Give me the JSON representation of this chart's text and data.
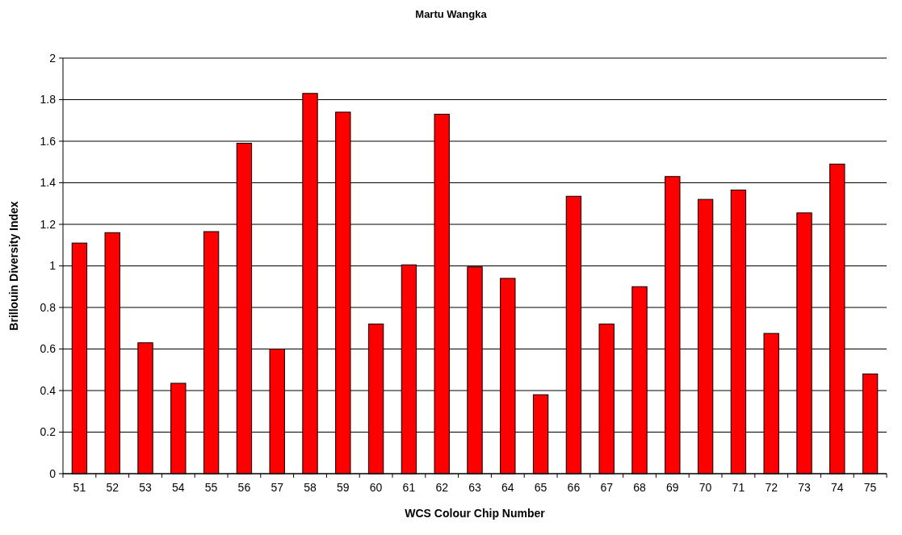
{
  "chart_data": {
    "type": "bar",
    "title": "Martu Wangka",
    "xlabel": "WCS Colour Chip Number",
    "ylabel": "Brillouin Diversity Index",
    "categories": [
      "51",
      "52",
      "53",
      "54",
      "55",
      "56",
      "57",
      "58",
      "59",
      "60",
      "61",
      "62",
      "63",
      "64",
      "65",
      "66",
      "67",
      "68",
      "69",
      "70",
      "71",
      "72",
      "73",
      "74",
      "75"
    ],
    "values": [
      1.11,
      1.16,
      0.63,
      0.435,
      1.165,
      1.59,
      0.6,
      1.83,
      1.74,
      0.72,
      1.005,
      1.73,
      0.995,
      0.94,
      0.38,
      1.335,
      0.72,
      0.9,
      1.43,
      1.32,
      1.365,
      0.675,
      1.255,
      1.49,
      0.48
    ],
    "color": "#ff0000",
    "ylim": [
      0,
      2
    ],
    "yticks": [
      0,
      {
        "value": 0.2,
        "label": "0.2"
      },
      {
        "value": 0.4,
        "label": "0.4"
      },
      {
        "value": 0.6,
        "label": "0.6"
      },
      {
        "value": 0.8,
        "label": "0.8"
      },
      1,
      {
        "value": 1.2,
        "label": "1.2"
      },
      {
        "value": 1.4,
        "label": "1.4"
      },
      {
        "value": 1.6,
        "label": "1.6"
      },
      {
        "value": 1.8,
        "label": "1.8"
      },
      2
    ],
    "grid": "y"
  }
}
